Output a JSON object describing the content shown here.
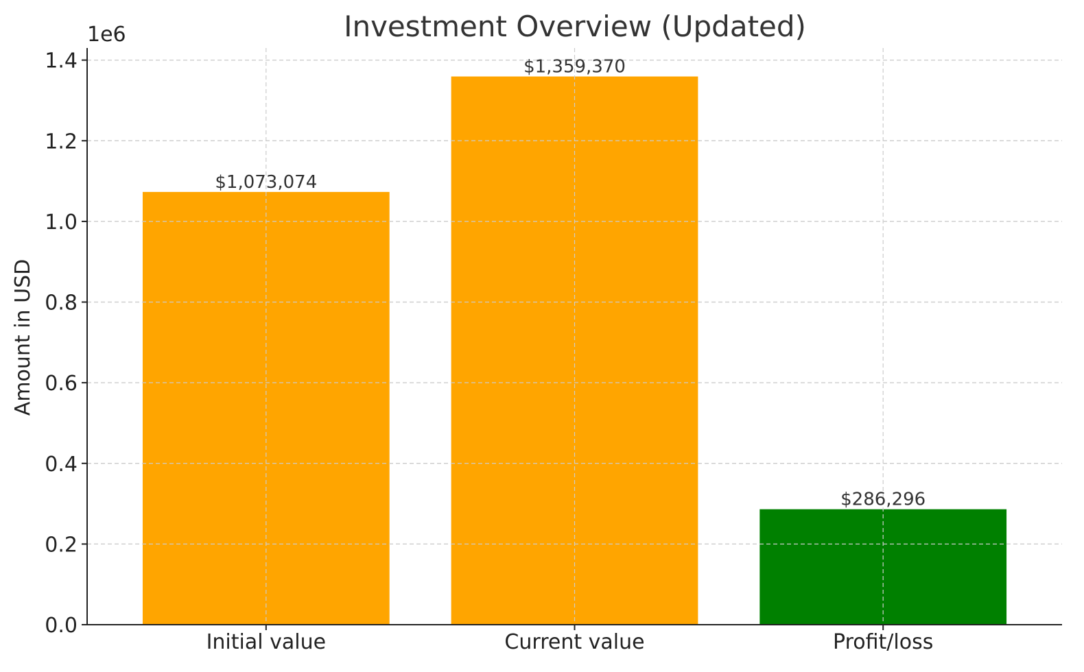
{
  "chart_data": {
    "type": "bar",
    "title": "Investment Overview (Updated)",
    "xlabel": "",
    "ylabel": "Amount in USD",
    "y_offset_label": "1e6",
    "categories": [
      "Initial value",
      "Current value",
      "Profit/loss"
    ],
    "values": [
      1073074,
      1359370,
      286296
    ],
    "data_labels": [
      "$1,073,074",
      "$1,359,370",
      "$286,296"
    ],
    "colors": [
      "#FFA500",
      "#FFA500",
      "#008000"
    ],
    "ylim": [
      0,
      1430000
    ],
    "yticks": [
      0,
      200000,
      400000,
      600000,
      800000,
      1000000,
      1200000,
      1400000
    ],
    "ytick_labels": [
      "0.0",
      "0.2",
      "0.4",
      "0.6",
      "0.8",
      "1.0",
      "1.2",
      "1.4"
    ],
    "grid": true
  }
}
